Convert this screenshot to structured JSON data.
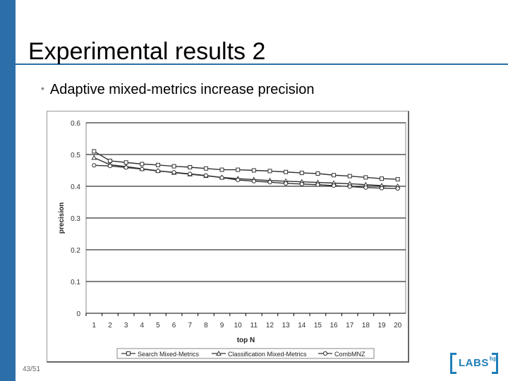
{
  "slide": {
    "title": "Experimental results 2",
    "bullet": "Adaptive mixed-metrics increase precision",
    "page_number": "43/51",
    "logo_text": "LABS",
    "logo_superscript": "hp"
  },
  "colors": {
    "accent": "#2c6fa8",
    "logo": "#1f7fb8",
    "series": "#333333",
    "plot_background": "#ffffff"
  },
  "chart_data": {
    "type": "line",
    "title": "",
    "xlabel": "top N",
    "ylabel": "precision",
    "x": [
      1,
      2,
      3,
      4,
      5,
      6,
      7,
      8,
      9,
      10,
      11,
      12,
      13,
      14,
      15,
      16,
      17,
      18,
      19,
      20
    ],
    "ylim": [
      0,
      0.6
    ],
    "yticks": [
      0,
      0.1,
      0.2,
      0.3,
      0.4,
      0.5,
      0.6
    ],
    "ytick_labels": [
      "0",
      "0.1",
      "0.2",
      "0.3",
      "0.4",
      "0.5",
      "0.6"
    ],
    "grid": true,
    "legend_position": "bottom",
    "series": [
      {
        "name": "Search Mixed-Metrics",
        "marker": "square",
        "values": [
          0.51,
          0.48,
          0.475,
          0.47,
          0.467,
          0.463,
          0.46,
          0.456,
          0.452,
          0.452,
          0.45,
          0.448,
          0.445,
          0.442,
          0.44,
          0.435,
          0.432,
          0.428,
          0.424,
          0.422
        ]
      },
      {
        "name": "Classification Mixed-Metrics",
        "marker": "triangle",
        "values": [
          0.49,
          0.468,
          0.462,
          0.455,
          0.449,
          0.443,
          0.438,
          0.433,
          0.428,
          0.424,
          0.421,
          0.418,
          0.416,
          0.414,
          0.412,
          0.41,
          0.408,
          0.405,
          0.402,
          0.4
        ]
      },
      {
        "name": "CombMNZ",
        "marker": "circle",
        "values": [
          0.466,
          0.464,
          0.459,
          0.454,
          0.448,
          0.444,
          0.439,
          0.434,
          0.427,
          0.42,
          0.416,
          0.413,
          0.409,
          0.407,
          0.405,
          0.402,
          0.399,
          0.396,
          0.394,
          0.393
        ]
      }
    ]
  }
}
